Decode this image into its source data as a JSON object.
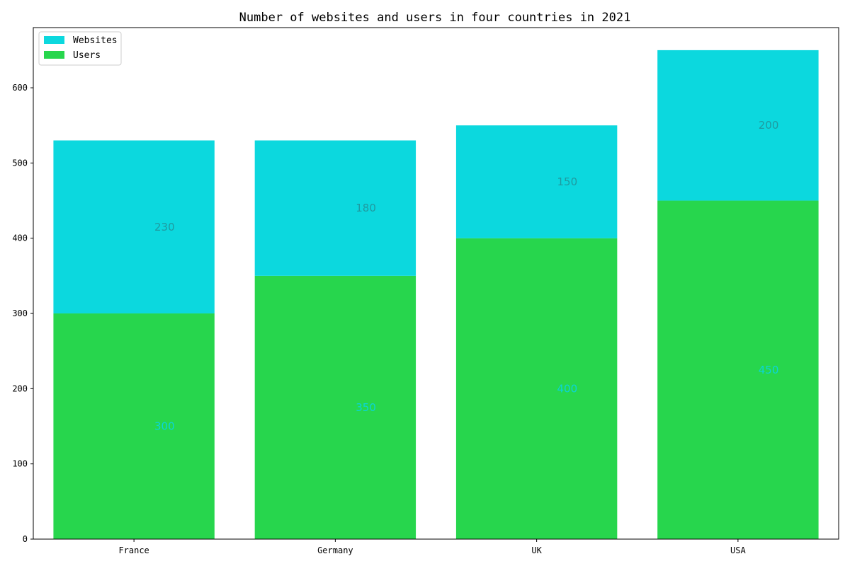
{
  "chart_data": {
    "type": "bar",
    "stacked": true,
    "title": "Number of websites and users in four countries in 2021",
    "xlabel": "",
    "ylabel": "",
    "categories": [
      "France",
      "Germany",
      "UK",
      "USA"
    ],
    "series": [
      {
        "name": "Users",
        "values": [
          300,
          350,
          400,
          450
        ],
        "color": "#27d64d",
        "label_color": "#0bd5d7"
      },
      {
        "name": "Websites",
        "values": [
          230,
          180,
          150,
          200
        ],
        "color": "#0cd8de",
        "label_color": "#1f9aa0"
      }
    ],
    "ylim": [
      0,
      680
    ],
    "yticks": [
      0,
      100,
      200,
      300,
      400,
      500,
      600
    ],
    "grid": false,
    "legend": {
      "placement": "upper-left",
      "entries": [
        {
          "label": "Websites",
          "color": "#0cd8de"
        },
        {
          "label": "Users",
          "color": "#27d64d"
        }
      ]
    }
  }
}
